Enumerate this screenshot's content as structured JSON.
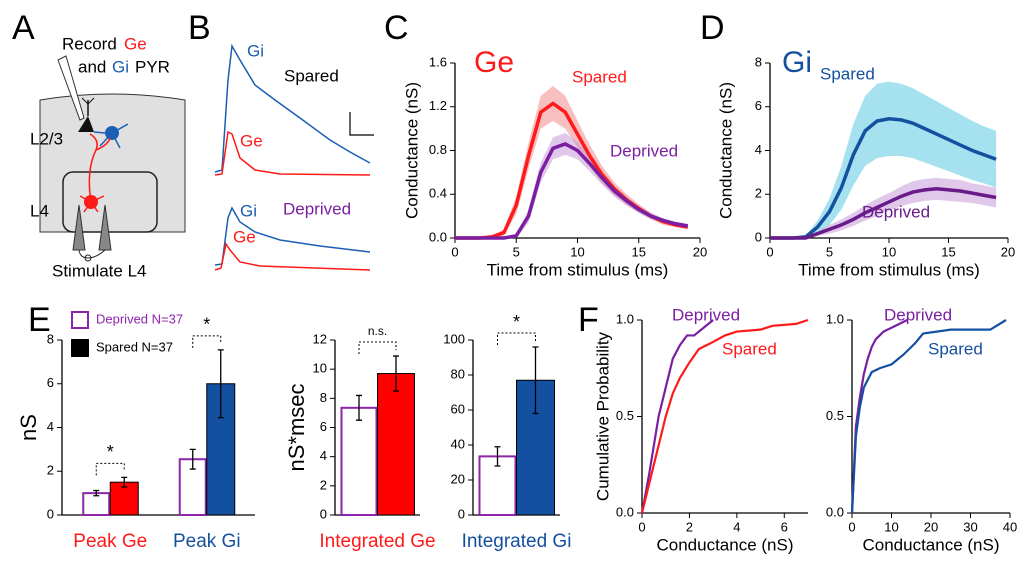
{
  "panel_labels": [
    "A",
    "B",
    "C",
    "D",
    "E",
    "F"
  ],
  "diagram_a": {
    "record": "Record",
    "ge": "Ge",
    "and": "and",
    "gi": "Gi",
    "pyr": "PYR",
    "layer_23": "L2/3",
    "layer_4": "L4",
    "stimulate": "Stimulate L4"
  },
  "traces_b": {
    "spared": {
      "gi": "Gi",
      "ge": "Ge",
      "label": "Spared"
    },
    "deprived": {
      "gi": "Gi",
      "ge": "Ge",
      "label": "Deprived"
    }
  },
  "chart_data": [
    {
      "type": "line",
      "title": "Ge",
      "title_color": "#ff1a1a",
      "x_label": "Time from stimulus (ms)",
      "y_label": "Conductance (nS)",
      "x": [
        0,
        1,
        2,
        3,
        4,
        5,
        6,
        7,
        8,
        9,
        10,
        11,
        12,
        13,
        14,
        15,
        16,
        17,
        18,
        19
      ],
      "xlim": [
        0,
        20
      ],
      "xticks": [
        0,
        5,
        10,
        15,
        20
      ],
      "ylim": [
        0,
        1.6
      ],
      "yticks": [
        {
          "value": 0,
          "label": "0.0"
        },
        0.4,
        0.8,
        1.2,
        1.6
      ],
      "series": [
        {
          "name": "Spared",
          "color": "#ff1a1a",
          "band_color": "#f08a8a",
          "values": [
            0,
            0,
            0,
            0.01,
            0.05,
            0.3,
            0.75,
            1.15,
            1.23,
            1.15,
            0.95,
            0.75,
            0.58,
            0.45,
            0.35,
            0.27,
            0.2,
            0.15,
            0.12,
            0.1
          ],
          "error": [
            0,
            0,
            0,
            0.01,
            0.03,
            0.08,
            0.12,
            0.15,
            0.16,
            0.15,
            0.12,
            0.1,
            0.08,
            0.06,
            0.05,
            0.04,
            0.03,
            0.03,
            0.02,
            0.02
          ]
        },
        {
          "name": "Deprived",
          "color": "#7b1fa2",
          "band_color": "#c49ad8",
          "values": [
            0,
            0,
            0,
            0,
            0,
            0.02,
            0.2,
            0.6,
            0.82,
            0.86,
            0.8,
            0.68,
            0.55,
            0.43,
            0.34,
            0.26,
            0.2,
            0.16,
            0.13,
            0.11
          ],
          "error": [
            0,
            0,
            0,
            0,
            0,
            0.02,
            0.06,
            0.09,
            0.1,
            0.1,
            0.08,
            0.07,
            0.06,
            0.05,
            0.04,
            0.03,
            0.03,
            0.02,
            0.02,
            0.02
          ]
        }
      ]
    },
    {
      "type": "line",
      "title": "Gi",
      "title_color": "#1450a0",
      "x_label": "Time from stimulus (ms)",
      "y_label": "Conductance (nS)",
      "x": [
        0,
        1,
        2,
        3,
        4,
        5,
        6,
        7,
        8,
        9,
        10,
        11,
        12,
        13,
        14,
        15,
        16,
        17,
        18,
        19
      ],
      "xlim": [
        0,
        20
      ],
      "xticks": [
        0,
        5,
        10,
        15,
        20
      ],
      "ylim": [
        0,
        8
      ],
      "yticks": [
        0,
        2,
        4,
        6,
        8
      ],
      "series": [
        {
          "name": "Spared",
          "color": "#1450a0",
          "band_color": "#5bc8e0",
          "values": [
            0,
            0,
            0,
            0.05,
            0.5,
            1.2,
            2.3,
            3.8,
            4.9,
            5.35,
            5.45,
            5.4,
            5.25,
            5.0,
            4.75,
            4.5,
            4.25,
            4.0,
            3.8,
            3.6
          ],
          "error": [
            0,
            0,
            0,
            0.05,
            0.3,
            0.6,
            1.0,
            1.4,
            1.6,
            1.7,
            1.7,
            1.65,
            1.6,
            1.55,
            1.5,
            1.45,
            1.4,
            1.35,
            1.3,
            1.3
          ]
        },
        {
          "name": "Deprived",
          "color": "#6a1b8a",
          "band_color": "#c49ad8",
          "values": [
            0,
            0,
            0,
            0,
            0.2,
            0.4,
            0.6,
            0.85,
            1.15,
            1.4,
            1.65,
            1.9,
            2.1,
            2.2,
            2.25,
            2.2,
            2.15,
            2.05,
            1.95,
            1.85
          ],
          "error": [
            0,
            0,
            0,
            0,
            0.1,
            0.2,
            0.25,
            0.3,
            0.35,
            0.4,
            0.4,
            0.45,
            0.5,
            0.5,
            0.5,
            0.5,
            0.5,
            0.45,
            0.45,
            0.45
          ]
        }
      ]
    },
    {
      "type": "bar",
      "y_label": "nS",
      "legend": true,
      "categories": [
        "Peak Ge",
        "Peak Gi"
      ],
      "category_colors": [
        "#ff1a1a",
        "#1450a0"
      ],
      "ylim": [
        0,
        8
      ],
      "yticks": [
        0,
        2,
        4,
        6,
        8
      ],
      "annotations": [
        "*",
        "*"
      ],
      "series": [
        {
          "name": "Deprived N=37",
          "color": "#8e24aa",
          "style": "outline",
          "values": [
            1.0,
            2.55
          ],
          "error": [
            0.12,
            0.45
          ]
        },
        {
          "name": "Spared N=37",
          "color": "#000000",
          "colors": [
            "#ff0000",
            "#1450a0"
          ],
          "values": [
            1.5,
            6.0
          ],
          "error": [
            0.22,
            1.55
          ]
        }
      ]
    },
    {
      "type": "bar",
      "y_label": "nS*msec",
      "categories": [
        "Integrated Ge"
      ],
      "category_colors": [
        "#ff1a1a"
      ],
      "ylim": [
        0,
        12
      ],
      "yticks": [
        0,
        2,
        4,
        6,
        8,
        10,
        12
      ],
      "annotations": [
        "n.s."
      ],
      "series": [
        {
          "color": "#8e24aa",
          "style": "outline",
          "values": [
            7.35
          ],
          "error": [
            0.85
          ]
        },
        {
          "colors": [
            "#ff0000"
          ],
          "values": [
            9.7
          ],
          "error": [
            1.2
          ]
        }
      ]
    },
    {
      "type": "bar",
      "categories": [
        "Integrated Gi"
      ],
      "category_colors": [
        "#1450a0"
      ],
      "ylim": [
        0,
        100
      ],
      "yticks": [
        0,
        20,
        40,
        60,
        80,
        100
      ],
      "annotations": [
        "*"
      ],
      "series": [
        {
          "color": "#8e24aa",
          "style": "outline",
          "values": [
            33.5
          ],
          "error": [
            5.5
          ]
        },
        {
          "colors": [
            "#1450a0"
          ],
          "values": [
            77
          ],
          "error": [
            19
          ]
        }
      ]
    },
    {
      "type": "line",
      "x_label": "Conductance (nS)",
      "y_label": "Cumulative Probability",
      "xlim": [
        0,
        7
      ],
      "xticks": [
        0,
        2,
        4,
        6
      ],
      "ylim": [
        0,
        1
      ],
      "yticks": [
        {
          "value": 0,
          "label": "0.0"
        },
        0.5,
        {
          "value": 1,
          "label": "1.0"
        }
      ],
      "series": [
        {
          "name": "Deprived",
          "color": "#7b1fa2",
          "x": [
            0,
            0.3,
            0.5,
            0.7,
            0.9,
            1.1,
            1.3,
            1.6,
            1.9,
            2.2,
            2.5,
            2.8,
            3.0
          ],
          "values": [
            0,
            0.2,
            0.35,
            0.5,
            0.6,
            0.7,
            0.8,
            0.87,
            0.92,
            0.92,
            0.95,
            0.98,
            1.0
          ]
        },
        {
          "name": "Spared",
          "color": "#ff1a1a",
          "x": [
            0,
            0.4,
            0.7,
            1.0,
            1.3,
            1.6,
            2.0,
            2.4,
            2.9,
            3.5,
            4.0,
            5.0,
            5.5,
            6.5,
            7.0
          ],
          "values": [
            0,
            0.2,
            0.35,
            0.5,
            0.62,
            0.7,
            0.78,
            0.85,
            0.88,
            0.92,
            0.94,
            0.95,
            0.97,
            0.98,
            1.0
          ]
        }
      ]
    },
    {
      "type": "line",
      "x_label": "Conductance (nS)",
      "xlim": [
        0,
        40
      ],
      "xticks": [
        0,
        10,
        20,
        30,
        40
      ],
      "ylim": [
        0,
        1
      ],
      "yticks": [
        {
          "value": 0,
          "label": "0.0"
        },
        0.5,
        {
          "value": 1,
          "label": "1.0"
        }
      ],
      "series": [
        {
          "name": "Deprived",
          "color": "#7b1fa2",
          "x": [
            0,
            1,
            2,
            3,
            4,
            5,
            6,
            8,
            10,
            12,
            14
          ],
          "values": [
            0,
            0.45,
            0.6,
            0.72,
            0.8,
            0.86,
            0.9,
            0.94,
            0.96,
            0.98,
            1.0
          ]
        },
        {
          "name": "Spared",
          "color": "#1450a0",
          "x": [
            0,
            1,
            2,
            3,
            5,
            7,
            10,
            13,
            16,
            18,
            25,
            35,
            39
          ],
          "values": [
            0,
            0.4,
            0.55,
            0.65,
            0.73,
            0.75,
            0.77,
            0.82,
            0.88,
            0.93,
            0.95,
            0.95,
            1.0
          ]
        }
      ]
    }
  ]
}
